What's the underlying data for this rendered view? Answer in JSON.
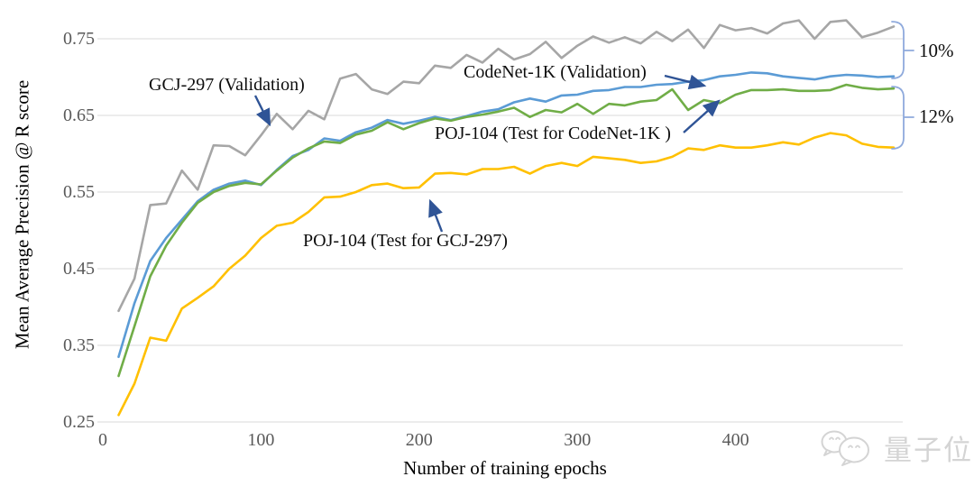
{
  "watermark": {
    "text": "量子位",
    "icon": "wechat-chat-bubbles"
  },
  "chart_data": {
    "type": "line",
    "title": "",
    "xlabel": "Number of training epochs",
    "ylabel": "Mean Average Precision @ R score",
    "x_start_epoch": 10,
    "x_step_epochs": 10,
    "xticks": [
      0,
      100,
      200,
      300,
      400
    ],
    "yticks": [
      0.75,
      0.65,
      0.55,
      0.45,
      0.35,
      0.25
    ],
    "ylim": [
      0.25,
      0.78
    ],
    "xlim": [
      0,
      510
    ],
    "grid": "horizontal",
    "legend_position": "inline-annotations",
    "colors": {
      "grid": "#d9d9d9",
      "tick_text": "#595959",
      "annotation_arrow": "#2f5496",
      "bracket": "#8faadc",
      "watermark": "#d4d4d4"
    },
    "series": [
      {
        "name": "GCJ-297 (Validation)",
        "color": "#a6a6a6",
        "values": [
          0.395,
          0.437,
          0.533,
          0.535,
          0.578,
          0.553,
          0.611,
          0.61,
          0.598,
          0.624,
          0.652,
          0.632,
          0.656,
          0.645,
          0.698,
          0.704,
          0.684,
          0.678,
          0.694,
          0.692,
          0.715,
          0.712,
          0.729,
          0.719,
          0.737,
          0.723,
          0.73,
          0.746,
          0.725,
          0.741,
          0.753,
          0.745,
          0.752,
          0.744,
          0.759,
          0.747,
          0.762,
          0.738,
          0.768,
          0.761,
          0.764,
          0.757,
          0.77,
          0.774,
          0.75,
          0.772,
          0.774,
          0.752,
          0.758,
          0.766
        ]
      },
      {
        "name": "CodeNet-1K (Validation)",
        "color": "#5b9bd5",
        "values": [
          0.335,
          0.405,
          0.46,
          0.49,
          0.514,
          0.538,
          0.553,
          0.561,
          0.565,
          0.559,
          0.579,
          0.597,
          0.605,
          0.62,
          0.617,
          0.628,
          0.634,
          0.644,
          0.639,
          0.643,
          0.648,
          0.644,
          0.649,
          0.655,
          0.658,
          0.667,
          0.672,
          0.668,
          0.676,
          0.677,
          0.682,
          0.683,
          0.687,
          0.687,
          0.69,
          0.691,
          0.694,
          0.696,
          0.701,
          0.703,
          0.706,
          0.705,
          0.701,
          0.699,
          0.697,
          0.701,
          0.703,
          0.702,
          0.7,
          0.701
        ]
      },
      {
        "name": "POJ-104 (Test for CodeNet-1K )",
        "color": "#70ad47",
        "values": [
          0.31,
          0.375,
          0.44,
          0.48,
          0.51,
          0.536,
          0.55,
          0.558,
          0.562,
          0.56,
          0.578,
          0.595,
          0.607,
          0.616,
          0.614,
          0.625,
          0.63,
          0.641,
          0.632,
          0.64,
          0.646,
          0.643,
          0.648,
          0.651,
          0.655,
          0.66,
          0.648,
          0.657,
          0.654,
          0.665,
          0.652,
          0.665,
          0.663,
          0.668,
          0.67,
          0.684,
          0.657,
          0.67,
          0.666,
          0.677,
          0.683,
          0.683,
          0.684,
          0.682,
          0.682,
          0.683,
          0.69,
          0.686,
          0.684,
          0.685
        ]
      },
      {
        "name": "POJ-104 (Test for GCJ-297)",
        "color": "#ffc000",
        "values": [
          0.259,
          0.3,
          0.36,
          0.356,
          0.398,
          0.412,
          0.427,
          0.45,
          0.467,
          0.49,
          0.506,
          0.51,
          0.524,
          0.543,
          0.544,
          0.55,
          0.559,
          0.561,
          0.555,
          0.556,
          0.574,
          0.575,
          0.573,
          0.58,
          0.58,
          0.583,
          0.574,
          0.584,
          0.588,
          0.584,
          0.596,
          0.594,
          0.592,
          0.588,
          0.59,
          0.596,
          0.607,
          0.605,
          0.611,
          0.608,
          0.608,
          0.611,
          0.615,
          0.612,
          0.621,
          0.627,
          0.624,
          0.613,
          0.609,
          0.608
        ]
      }
    ],
    "gap_labels": [
      {
        "text": "10%",
        "between": [
          "GCJ-297 (Validation)",
          "CodeNet-1K (Validation)"
        ]
      },
      {
        "text": "12%",
        "between": [
          "POJ-104 (Test for CodeNet-1K )",
          "POJ-104 (Test for GCJ-297)"
        ]
      }
    ]
  }
}
